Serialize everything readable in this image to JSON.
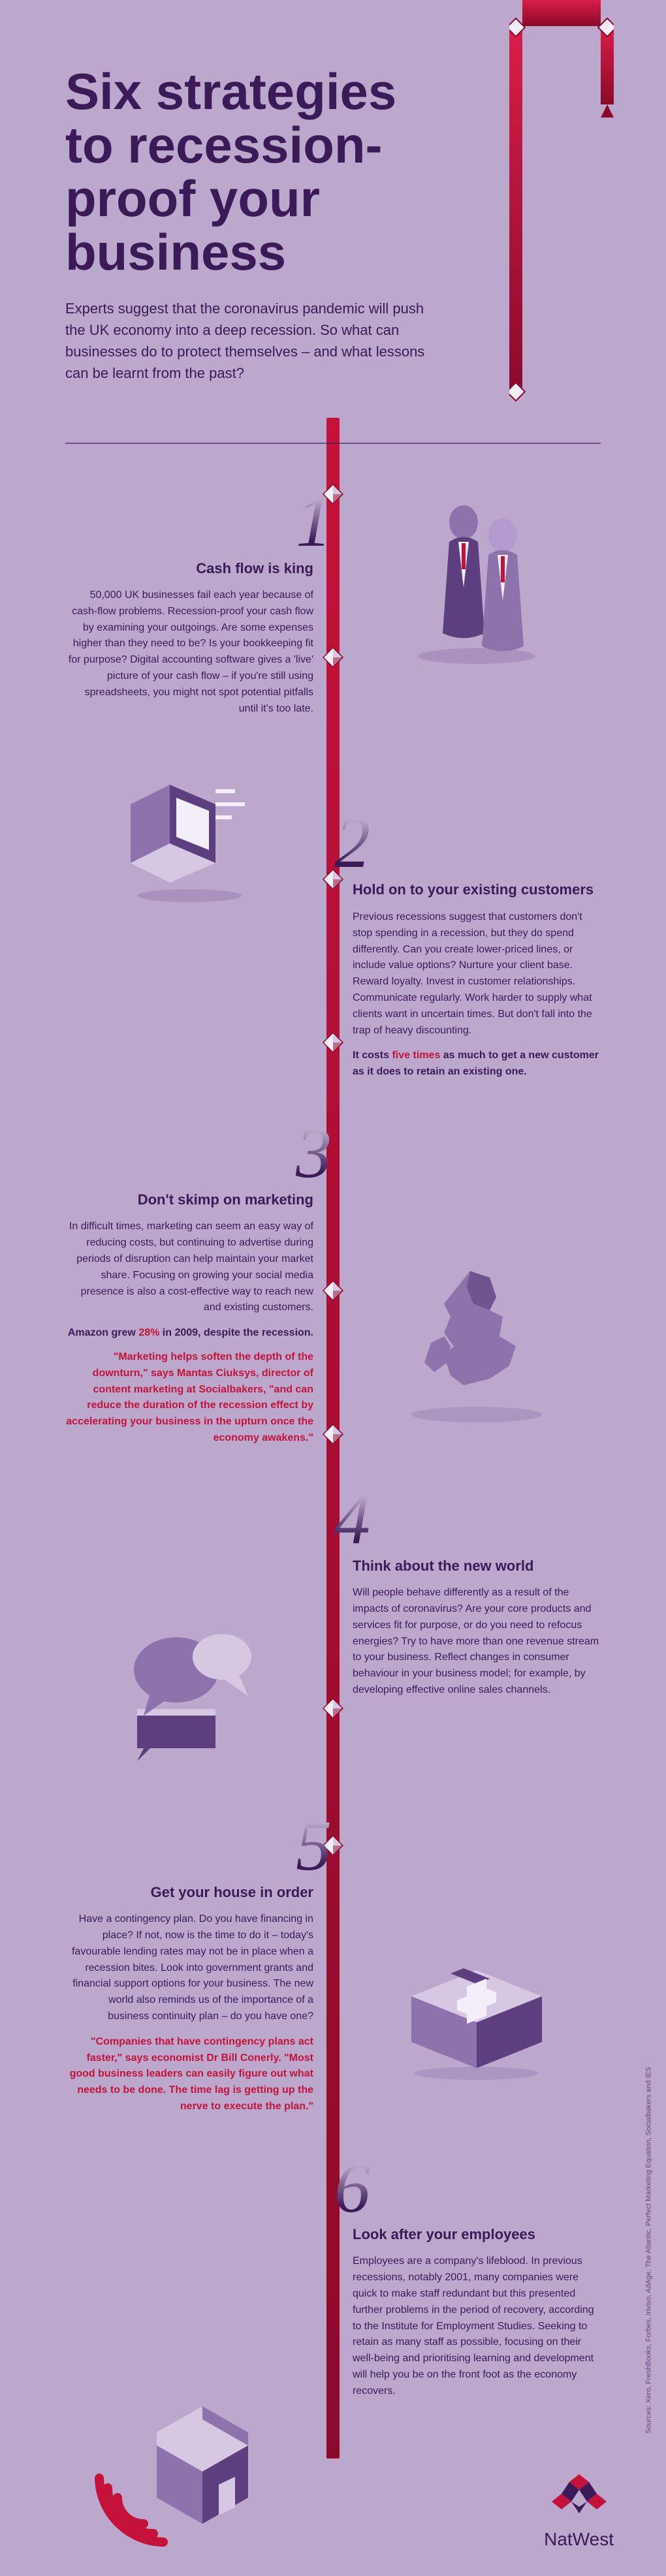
{
  "palette": {
    "background": "#bba8cc",
    "title": "#3a1a57",
    "text": "#3a1a57",
    "accent": "#c4123a",
    "pipe_light": "#d81e49",
    "pipe_dark": "#8b0a2b",
    "illus_light": "#d6c7e3",
    "illus_mid": "#8e72ab",
    "illus_dark": "#5d3f80",
    "white": "#f4eef9"
  },
  "typography": {
    "title_fontsize": 78,
    "intro_fontsize": 22,
    "body_fontsize": 16,
    "number_fontsize": 110
  },
  "header": {
    "title": "Six strategies to recession-proof your business",
    "intro": "Experts suggest that the coronavirus pandemic will push the UK economy into a deep recession. So what can businesses do to protect themselves – and what lessons can be learnt from the past?"
  },
  "sections": [
    {
      "num": "1",
      "heading": "Cash flow is king",
      "body": "50,000 UK businesses fail each year because of cash-flow problems. Recession-proof your cash flow by examining your outgoings. Are some expenses higher than they need to be? Is your bookkeeping fit for purpose? Digital accounting software gives a 'live' picture of your cash flow – if you're still using spreadsheets, you might not spot potential pitfalls until it's too late."
    },
    {
      "num": "2",
      "heading": "Hold on to your existing customers",
      "body": "Previous recessions suggest that customers don't stop spending in a recession, but they do spend differently. Can you create lower-priced lines, or include value options? Nurture your client base. Reward loyalty. Invest in customer relationships. Communicate regularly. Work harder to supply what clients want in uncertain times. But don't fall into the trap of heavy discounting.",
      "callout_pre": "It costs ",
      "callout_hi": "five times",
      "callout_post": " as much to get a new customer as it does to retain an existing one."
    },
    {
      "num": "3",
      "heading": "Don't skimp on marketing",
      "body": "In difficult times, marketing can seem an easy way of reducing costs, but continuing to advertise during periods of disruption can help maintain your market share. Focusing on growing your social media presence is also a cost-effective way to reach new and existing customers.",
      "callout_pre": "Amazon grew ",
      "callout_hi": "28%",
      "callout_post": " in 2009, despite the recession.",
      "quote": "\"Marketing helps soften the depth of the downturn,\" says Mantas Ciuksys, director of content marketing at Socialbakers, \"and can reduce the duration of the recession effect by accelerating your business in the upturn once the economy awakens.\""
    },
    {
      "num": "4",
      "heading": "Think about the new world",
      "body": "Will people behave differently as a result of the impacts of coronavirus? Are your core products and services fit for purpose, or do you need to refocus energies? Try to have more than one revenue stream to your business. Reflect changes in consumer behaviour in your business model; for example, by developing effective online sales channels."
    },
    {
      "num": "5",
      "heading": "Get your house in order",
      "body": "Have a contingency plan. Do you have financing in place? If not, now is the time to do it – today's favourable lending rates may not be in place when a recession bites. Look into government grants and financial support options for your business. The new world also reminds us of the importance of a business continuity plan – do you have one?",
      "quote": "\"Companies that have contingency plans act faster,\" says economist Dr Bill Conerly. \"Most good business leaders can easily figure out what needs to be done. The time lag is getting up the nerve to execute the plan.\""
    },
    {
      "num": "6",
      "heading": "Look after your employees",
      "body": "Employees are a company's lifeblood. In previous recessions, notably 2001, many companies were quick to make staff redundant but this presented further problems in the period of recovery, according to the Institute for Employment Studies. Seeking to retain as many staff as possible, focusing on their well-being and prioritising learning and development will help you be on the front foot as the economy recovers."
    }
  ],
  "gems": [
    740,
    990,
    1330,
    1580,
    1960,
    2180,
    2600,
    2810
  ],
  "sources": "Sources: Xero, FreshBooks, Forbes, Inviso, AdAge, The Atlantic, Perfect Marketing Equation, Socialbakers and IES",
  "logo": {
    "name": "NatWest"
  }
}
